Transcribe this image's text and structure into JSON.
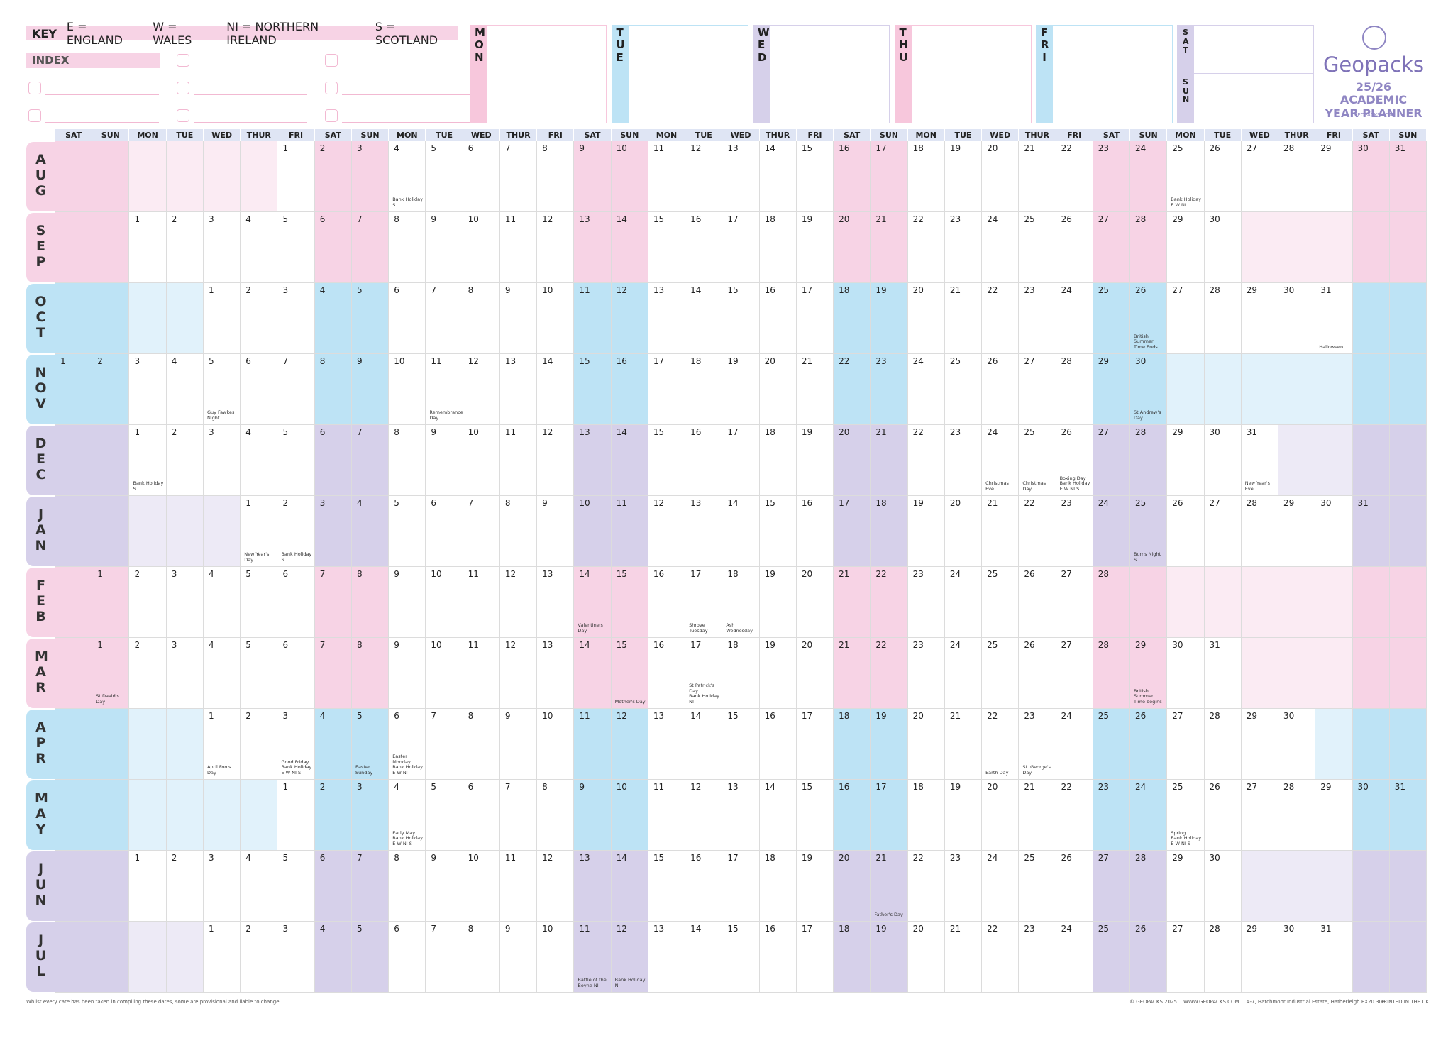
{
  "key": {
    "label": "KEY",
    "items": [
      "E = ENGLAND",
      "W = WALES",
      "NI = NORTHERN IRELAND",
      "S = SCOTLAND"
    ]
  },
  "index": {
    "title": "INDEX"
  },
  "planner_days": [
    "MON",
    "TUE",
    "WED",
    "THU",
    "FRI",
    "SAT",
    "SUN"
  ],
  "logo": {
    "brand": "Geopacks",
    "title": "25/26 ACADEMIC\nYEAR PLANNER",
    "url": "GEOPACKS.COM"
  },
  "day_headers": [
    "SAT",
    "SUN",
    "MON",
    "TUE",
    "WED",
    "THUR",
    "FRI",
    "SAT",
    "SUN",
    "MON",
    "TUE",
    "WED",
    "THUR",
    "FRI",
    "SAT",
    "SUN",
    "MON",
    "TUE",
    "WED",
    "THUR",
    "FRI",
    "SAT",
    "SUN",
    "MON",
    "TUE",
    "WED",
    "THUR",
    "FRI",
    "SAT",
    "SUN",
    "MON",
    "TUE",
    "WED",
    "THUR",
    "FRI",
    "SAT",
    "SUN"
  ],
  "months": [
    {
      "name": "AUG",
      "color": "#f7d3e5",
      "days": [
        null,
        null,
        null,
        null,
        null,
        null,
        1,
        2,
        3,
        {
          "day": 4,
          "note": "Bank Holiday\nS"
        },
        5,
        6,
        7,
        8,
        9,
        10,
        11,
        12,
        13,
        14,
        15,
        16,
        17,
        18,
        19,
        20,
        21,
        22,
        23,
        24,
        {
          "day": 25,
          "note": "Bank Holiday\nE W NI"
        },
        26,
        27,
        28,
        29,
        30,
        31
      ]
    },
    {
      "name": "SEP",
      "color": "#f7d3e5",
      "days": [
        null,
        null,
        1,
        2,
        3,
        4,
        5,
        6,
        7,
        8,
        9,
        10,
        11,
        12,
        13,
        14,
        15,
        16,
        17,
        18,
        19,
        20,
        21,
        22,
        23,
        24,
        25,
        26,
        27,
        28,
        29,
        30,
        null,
        null,
        null,
        null,
        null
      ]
    },
    {
      "name": "OCT",
      "color": "#bde3f5",
      "days": [
        null,
        null,
        null,
        null,
        1,
        2,
        3,
        4,
        5,
        6,
        7,
        8,
        9,
        10,
        11,
        12,
        13,
        14,
        15,
        16,
        17,
        18,
        19,
        20,
        21,
        22,
        23,
        24,
        25,
        {
          "day": 26,
          "note": "British\nSummer\nTime Ends"
        },
        27,
        28,
        29,
        30,
        {
          "day": 31,
          "note": "Halloween"
        },
        null,
        null
      ]
    },
    {
      "name": "NOV",
      "color": "#bde3f5",
      "days": [
        1,
        2,
        3,
        4,
        {
          "day": 5,
          "note": "Guy Fawkes\nNight"
        },
        6,
        7,
        8,
        9,
        10,
        {
          "day": 11,
          "note": "Remembrance\nDay"
        },
        12,
        13,
        14,
        15,
        16,
        17,
        18,
        19,
        20,
        21,
        22,
        23,
        24,
        25,
        26,
        27,
        28,
        29,
        {
          "day": 30,
          "note": "St Andrew's Day"
        },
        null,
        null,
        null,
        null,
        null,
        null,
        null
      ]
    },
    {
      "name": "DEC",
      "color": "#d6d0ea",
      "days": [
        null,
        null,
        {
          "day": 1,
          "note": "Bank Holiday\nS"
        },
        2,
        3,
        4,
        5,
        6,
        7,
        8,
        9,
        10,
        11,
        12,
        13,
        14,
        15,
        16,
        17,
        18,
        19,
        20,
        21,
        22,
        23,
        {
          "day": 24,
          "note": "Christmas Eve"
        },
        {
          "day": 25,
          "note": "Christmas Day"
        },
        {
          "day": 26,
          "note": "Boxing Day\nBank Holiday\nE W NI S"
        },
        27,
        28,
        29,
        30,
        {
          "day": 31,
          "note": "New Year's Eve"
        },
        null,
        null,
        null,
        null
      ]
    },
    {
      "name": "JAN",
      "color": "#d6d0ea",
      "days": [
        null,
        null,
        null,
        null,
        null,
        {
          "day": 1,
          "note": "New Year's Day"
        },
        {
          "day": 2,
          "note": "Bank Holiday\nS"
        },
        3,
        4,
        5,
        6,
        7,
        8,
        9,
        10,
        11,
        12,
        13,
        14,
        15,
        16,
        17,
        18,
        19,
        20,
        21,
        22,
        23,
        24,
        {
          "day": 25,
          "note": "Burns Night\nS"
        },
        26,
        27,
        28,
        29,
        30,
        31,
        null
      ]
    },
    {
      "name": "FEB",
      "color": "#f7d3e5",
      "days": [
        null,
        1,
        2,
        3,
        4,
        5,
        6,
        7,
        8,
        9,
        10,
        11,
        12,
        13,
        {
          "day": 14,
          "note": "Valentine's Day"
        },
        15,
        16,
        {
          "day": 17,
          "note": "Shrove Tuesday"
        },
        {
          "day": 18,
          "note": "Ash Wednesday"
        },
        19,
        20,
        21,
        22,
        23,
        24,
        25,
        26,
        27,
        28,
        null,
        null,
        null,
        null,
        null,
        null,
        null,
        null
      ]
    },
    {
      "name": "MAR",
      "color": "#f7d3e5",
      "days": [
        null,
        {
          "day": 1,
          "note": "St David's Day"
        },
        2,
        3,
        4,
        5,
        6,
        7,
        8,
        9,
        10,
        11,
        12,
        13,
        14,
        {
          "day": 15,
          "note": "Mother's Day"
        },
        16,
        {
          "day": 17,
          "note": "St Patrick's Day\nBank Holiday\nNI"
        },
        18,
        19,
        20,
        21,
        22,
        23,
        24,
        25,
        26,
        27,
        28,
        {
          "day": 29,
          "note": "British Summer\nTime begins"
        },
        30,
        31,
        null,
        null,
        null,
        null,
        null
      ]
    },
    {
      "name": "APR",
      "color": "#bde3f5",
      "days": [
        null,
        null,
        null,
        null,
        {
          "day": 1,
          "note": "April Fools Day"
        },
        2,
        {
          "day": 3,
          "note": "Good Friday\nBank Holiday\nE W NI S"
        },
        4,
        {
          "day": 5,
          "note": "Easter Sunday"
        },
        {
          "day": 6,
          "note": "Easter Monday\nBank Holiday\nE W NI"
        },
        7,
        8,
        9,
        10,
        11,
        12,
        13,
        14,
        15,
        16,
        17,
        18,
        19,
        20,
        21,
        {
          "day": 22,
          "note": "Earth Day"
        },
        {
          "day": 23,
          "note": "St. George's\nDay"
        },
        24,
        25,
        26,
        27,
        28,
        29,
        30,
        null,
        null,
        null
      ]
    },
    {
      "name": "MAY",
      "color": "#bde3f5",
      "days": [
        null,
        null,
        null,
        null,
        null,
        null,
        1,
        2,
        3,
        {
          "day": 4,
          "note": "Early May\nBank Holiday\nE W NI S"
        },
        5,
        6,
        7,
        8,
        9,
        10,
        11,
        12,
        13,
        14,
        15,
        16,
        17,
        18,
        19,
        20,
        21,
        22,
        23,
        24,
        {
          "day": 25,
          "note": "Spring\nBank Holiday\nE W NI S"
        },
        26,
        27,
        28,
        29,
        30,
        31
      ]
    },
    {
      "name": "JUN",
      "color": "#d6d0ea",
      "days": [
        null,
        null,
        1,
        2,
        3,
        4,
        5,
        6,
        7,
        8,
        9,
        10,
        11,
        12,
        13,
        14,
        15,
        16,
        17,
        18,
        19,
        20,
        {
          "day": 21,
          "note": "Father's Day"
        },
        22,
        23,
        24,
        25,
        26,
        27,
        28,
        29,
        30,
        null,
        null,
        null,
        null,
        null
      ]
    },
    {
      "name": "JUL",
      "color": "#d6d0ea",
      "days": [
        null,
        null,
        null,
        null,
        1,
        2,
        3,
        4,
        5,
        6,
        7,
        8,
        9,
        10,
        {
          "day": 11,
          "note": "Battle of the\nBoyne NI"
        },
        {
          "day": 12,
          "note": "Bank Holiday\nNI"
        },
        13,
        14,
        15,
        16,
        17,
        18,
        19,
        20,
        21,
        22,
        23,
        24,
        25,
        26,
        27,
        28,
        29,
        30,
        31,
        null,
        null
      ]
    }
  ],
  "footer": {
    "disclaimer": "Whilst every care has been taken in compiling these dates, some are provisional and liable to change.",
    "copyright": "© GEOPACKS 2025",
    "website": "WWW.GEOPACKS.COM",
    "address": "4-7, Hatchmoor Industrial Estate, Hatherleigh EX20 3LP",
    "printed": "PRINTED IN THE UK"
  }
}
